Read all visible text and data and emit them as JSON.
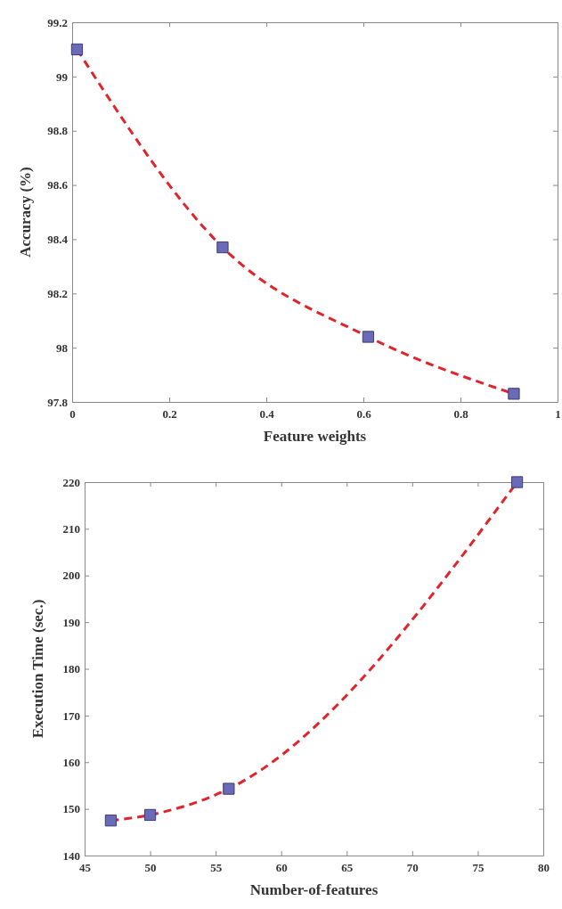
{
  "chart_data": [
    {
      "type": "line",
      "xlabel": "Feature weights",
      "ylabel": "Accuracy (%)",
      "xlim": [
        0,
        1
      ],
      "ylim": [
        97.8,
        99.2
      ],
      "xticks": [
        0,
        0.2,
        0.4,
        0.6,
        0.8,
        1
      ],
      "yticks": [
        97.8,
        98,
        98.2,
        98.4,
        98.6,
        98.8,
        99,
        99.2
      ],
      "marker": "square",
      "line_style": "dashed",
      "series": [
        {
          "color": "#e0242c",
          "x": [
            0.01,
            0.31,
            0.61,
            0.91
          ],
          "values": [
            99.1,
            98.37,
            98.04,
            97.83
          ]
        }
      ]
    },
    {
      "type": "line",
      "xlabel": "Number-of-features",
      "ylabel": "Execution Time (sec.)",
      "xlim": [
        45,
        80
      ],
      "ylim": [
        140,
        220
      ],
      "xticks": [
        45,
        50,
        55,
        60,
        65,
        70,
        75,
        80
      ],
      "yticks": [
        140,
        150,
        160,
        170,
        180,
        190,
        200,
        210,
        220
      ],
      "marker": "square",
      "line_style": "dashed",
      "series": [
        {
          "color": "#e0242c",
          "x": [
            47,
            50,
            56,
            78
          ],
          "values": [
            147.5,
            148.7,
            154.3,
            220
          ]
        }
      ]
    }
  ]
}
